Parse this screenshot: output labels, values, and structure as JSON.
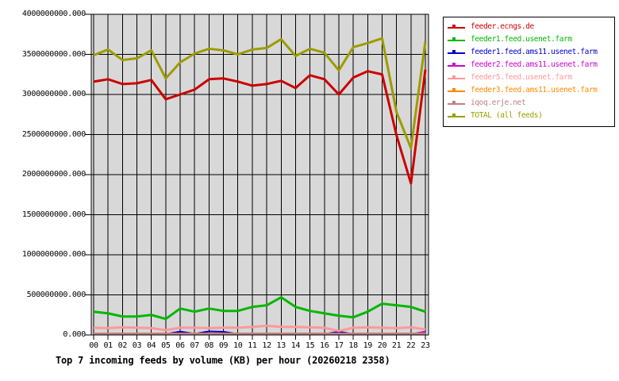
{
  "chart_data": {
    "type": "line",
    "title": "Top 7 incoming feeds by volume (KB) per hour (20260218 2358)",
    "xlabel": "",
    "ylabel": "",
    "x_categories": [
      "00",
      "01",
      "02",
      "03",
      "04",
      "05",
      "06",
      "07",
      "08",
      "09",
      "10",
      "11",
      "12",
      "13",
      "14",
      "15",
      "16",
      "17",
      "18",
      "19",
      "20",
      "21",
      "22",
      "23"
    ],
    "ylim": [
      0,
      4000000000
    ],
    "grid": true,
    "legend_position": "outside-top-right",
    "plot_background": "#d8d8d8",
    "grid_color": "#000000",
    "y_ticks": [
      {
        "value": 4000000000,
        "label": "4000000000.000"
      },
      {
        "value": 3500000000,
        "label": "3500000000.000"
      },
      {
        "value": 3000000000,
        "label": "3000000000.000"
      },
      {
        "value": 2500000000,
        "label": "2500000000.000"
      },
      {
        "value": 2000000000,
        "label": "2000000000.000"
      },
      {
        "value": 1500000000,
        "label": "1500000000.000"
      },
      {
        "value": 1000000000,
        "label": "1000000000.000"
      },
      {
        "value": 500000000,
        "label": "500000000.000"
      },
      {
        "value": 0,
        "label": "0.000"
      }
    ],
    "series": [
      {
        "name": "feeder.ecngs.de",
        "color": "#cc0000",
        "stroke_width": 3,
        "values": [
          3160000000,
          3190000000,
          3130000000,
          3140000000,
          3180000000,
          2940000000,
          3000000000,
          3060000000,
          3190000000,
          3200000000,
          3160000000,
          3110000000,
          3130000000,
          3170000000,
          3080000000,
          3240000000,
          3190000000,
          3000000000,
          3210000000,
          3290000000,
          3250000000,
          2490000000,
          1890000000,
          3310000000
        ]
      },
      {
        "name": "feeder1.feed.usenet.farm",
        "color": "#00b800",
        "stroke_width": 3,
        "values": [
          290000000,
          270000000,
          230000000,
          230000000,
          250000000,
          200000000,
          330000000,
          290000000,
          330000000,
          300000000,
          300000000,
          350000000,
          370000000,
          470000000,
          350000000,
          300000000,
          270000000,
          240000000,
          220000000,
          290000000,
          390000000,
          370000000,
          350000000,
          290000000
        ]
      },
      {
        "name": "feeder1.feed.ams11.usenet.farm",
        "color": "#0000cc",
        "stroke_width": 2,
        "values": [
          12000000,
          12000000,
          12000000,
          12000000,
          12000000,
          12000000,
          42000000,
          15000000,
          45000000,
          40000000,
          12000000,
          12000000,
          12000000,
          15000000,
          12000000,
          12000000,
          12000000,
          40000000,
          12000000,
          12000000,
          12000000,
          12000000,
          15000000,
          20000000
        ]
      },
      {
        "name": "feeder2.feed.ams11.usenet.farm",
        "color": "#cc00cc",
        "stroke_width": 2,
        "values": [
          6000000,
          6000000,
          6000000,
          6000000,
          6000000,
          6000000,
          6000000,
          6000000,
          6000000,
          6000000,
          6000000,
          6000000,
          6000000,
          6000000,
          6000000,
          6000000,
          6000000,
          6000000,
          6000000,
          6000000,
          6000000,
          6000000,
          10000000,
          42000000
        ]
      },
      {
        "name": "feeder5.feed.usenet.farm",
        "color": "#ff9898",
        "stroke_width": 3,
        "values": [
          90000000,
          85000000,
          95000000,
          90000000,
          85000000,
          60000000,
          90000000,
          90000000,
          85000000,
          90000000,
          90000000,
          100000000,
          115000000,
          100000000,
          100000000,
          95000000,
          90000000,
          50000000,
          90000000,
          95000000,
          90000000,
          85000000,
          95000000,
          70000000
        ]
      },
      {
        "name": "feeder3.feed.ams11.usenet.farm",
        "color": "#ff8800",
        "stroke_width": 2,
        "values": [
          8000000,
          8000000,
          8000000,
          8000000,
          8000000,
          8000000,
          8000000,
          8000000,
          8000000,
          8000000,
          8000000,
          8000000,
          8000000,
          8000000,
          8000000,
          8000000,
          8000000,
          8000000,
          8000000,
          8000000,
          8000000,
          8000000,
          8000000,
          8000000
        ]
      },
      {
        "name": "iqoq.erje.net",
        "color": "#c08080",
        "stroke_width": 3,
        "values": [
          15000000,
          15000000,
          15000000,
          15000000,
          15000000,
          15000000,
          15000000,
          15000000,
          15000000,
          15000000,
          15000000,
          15000000,
          15000000,
          15000000,
          15000000,
          15000000,
          15000000,
          15000000,
          15000000,
          15000000,
          15000000,
          15000000,
          15000000,
          15000000
        ]
      },
      {
        "name": "TOTAL (all feeds)",
        "color": "#9c9c00",
        "stroke_width": 3,
        "values": [
          3490000000,
          3560000000,
          3430000000,
          3450000000,
          3550000000,
          3200000000,
          3400000000,
          3510000000,
          3570000000,
          3550000000,
          3500000000,
          3560000000,
          3580000000,
          3690000000,
          3480000000,
          3570000000,
          3520000000,
          3300000000,
          3590000000,
          3640000000,
          3700000000,
          2780000000,
          2330000000,
          3660000000
        ]
      }
    ]
  }
}
